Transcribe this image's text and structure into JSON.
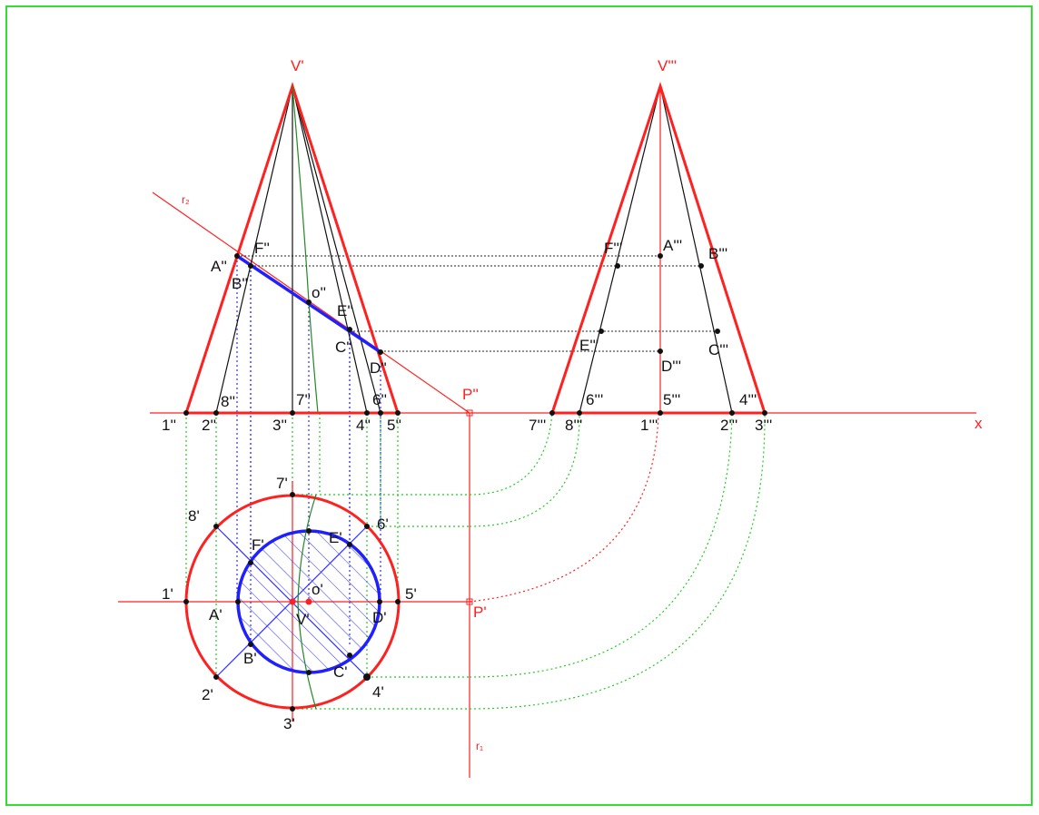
{
  "labels": {
    "vprime": "V'",
    "vtriple": "V'''",
    "r2": "r₂",
    "r1": "r₁",
    "pdouble": "P''",
    "psingle": "P'",
    "x": "x",
    "A2": "A''",
    "B2": "B''",
    "C2": "C''",
    "D2": "D''",
    "E2": "E''",
    "F2": "F''",
    "o2": "o''",
    "A3": "A'''",
    "B3": "B'''",
    "C3": "C'''",
    "D3": "D'''",
    "E3": "E'''",
    "F3": "F'''",
    "n1_2": "1''",
    "n2_2": "2''",
    "n3_2": "3''",
    "n4_2": "4''",
    "n5_2": "5''",
    "n6_2": "6''",
    "n7_2": "7''",
    "n8_2": "8''",
    "n7_3": "7'''",
    "n8_3": "8'''",
    "n1_3": "1'''",
    "n2_3": "2'''",
    "n3_3": "3'''",
    "n4_3": "4'''",
    "n5_3": "5'''",
    "n6_3": "6'''",
    "n1_1": "1'",
    "n2_1": "2'",
    "n3_1": "3'",
    "n4_1": "4'",
    "n5_1": "5'",
    "n6_1": "6'",
    "n7_1": "7'",
    "n8_1": "8'",
    "A1": "A'",
    "B1": "B'",
    "C1": "C'",
    "D1": "D'",
    "E1": "E'",
    "F1": "F'",
    "o1": "o'",
    "V1": "V'"
  },
  "colors": {
    "outline": "#ff2020",
    "section": "#2020ff",
    "construction_blue": "#3030ff",
    "construction_green": "#22cc22",
    "curve": "#228822",
    "frame": "#33dd33"
  }
}
